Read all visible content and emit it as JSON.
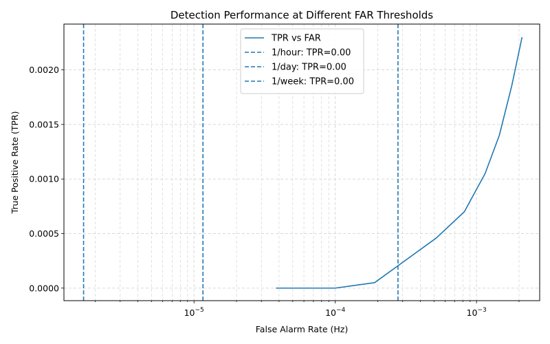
{
  "chart_data": {
    "type": "line",
    "title": "Detection Performance at Different FAR Thresholds",
    "xlabel": "False Alarm Rate (Hz)",
    "ylabel": "True Positive Rate (TPR)",
    "x_scale": "log",
    "xlim": [
      1.2e-06,
      0.0028
    ],
    "ylim": [
      -0.000115,
      0.00242
    ],
    "grid": true,
    "legend_position": "top-center",
    "x_ticks": [
      {
        "value": 1e-05,
        "base": "10",
        "exp": "−5"
      },
      {
        "value": 0.0001,
        "base": "10",
        "exp": "−4"
      },
      {
        "value": 0.001,
        "base": "10",
        "exp": "−3"
      }
    ],
    "y_ticks": [
      {
        "value": 0.0,
        "label": "0.0000"
      },
      {
        "value": 0.0005,
        "label": "0.0005"
      },
      {
        "value": 0.001,
        "label": "0.0010"
      },
      {
        "value": 0.0015,
        "label": "0.0015"
      },
      {
        "value": 0.002,
        "label": "0.0020"
      }
    ],
    "series": [
      {
        "name": "TPR vs FAR",
        "color": "#1f77b4",
        "style": "solid",
        "x": [
          3.8e-05,
          0.0001,
          0.00019,
          0.00052,
          0.00082,
          0.00115,
          0.00145,
          0.00178,
          0.0021
        ],
        "y": [
          0.0,
          0.0,
          5e-05,
          0.00046,
          0.0007,
          0.00105,
          0.0014,
          0.00186,
          0.0023
        ]
      }
    ],
    "vlines": [
      {
        "name": "1/hour: TPR=0.00",
        "x": 0.000278,
        "color": "#1f77b4",
        "style": "dashed"
      },
      {
        "name": "1/day: TPR=0.00",
        "x": 1.157e-05,
        "color": "#1f77b4",
        "style": "dashed"
      },
      {
        "name": "1/week: TPR=0.00",
        "x": 1.653e-06,
        "color": "#1f77b4",
        "style": "dashed"
      }
    ]
  }
}
